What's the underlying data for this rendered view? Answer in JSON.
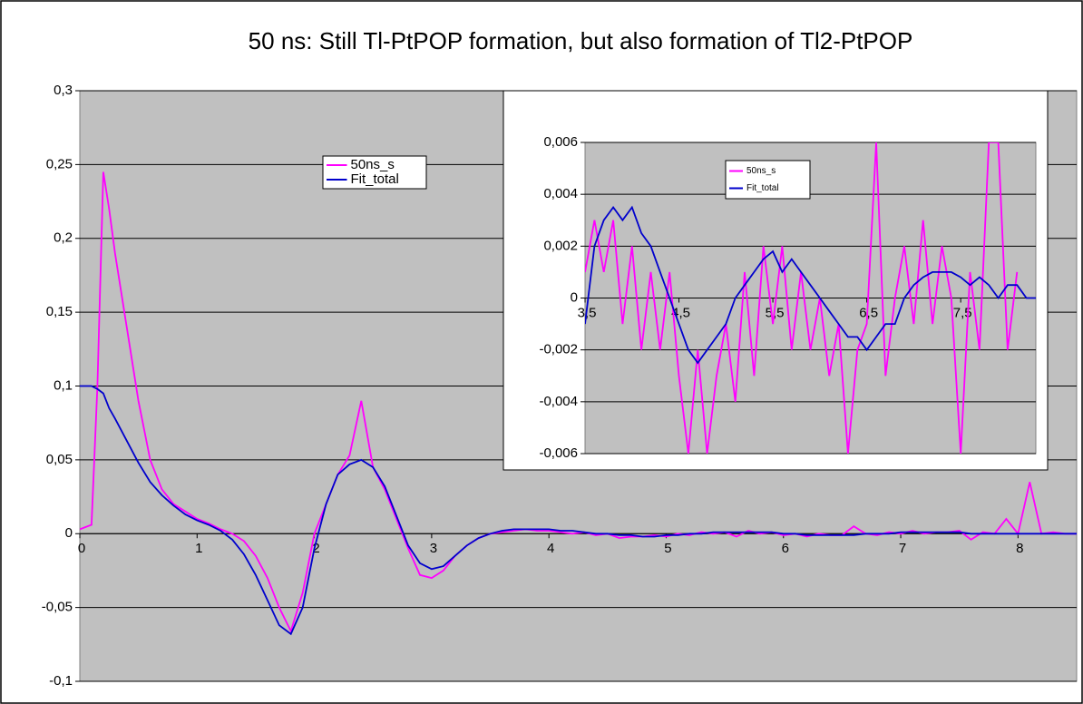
{
  "chart_data": [
    {
      "type": "line",
      "title": "50 ns: Still Tl-PtPOP formation, but also formation of Tl2-PtPOP",
      "x": [
        0,
        0.1,
        0.15,
        0.2,
        0.25,
        0.3,
        0.4,
        0.5,
        0.6,
        0.7,
        0.8,
        0.9,
        1.0,
        1.1,
        1.2,
        1.3,
        1.4,
        1.5,
        1.6,
        1.7,
        1.8,
        1.9,
        2.0,
        2.1,
        2.2,
        2.3,
        2.4,
        2.5,
        2.6,
        2.7,
        2.8,
        2.9,
        3.0,
        3.1,
        3.2,
        3.3,
        3.4,
        3.5,
        3.6,
        3.7,
        3.8,
        3.9,
        4.0,
        4.1,
        4.2,
        4.3,
        4.4,
        4.5,
        4.6,
        4.7,
        4.8,
        4.9,
        5.0,
        5.1,
        5.2,
        5.3,
        5.4,
        5.5,
        5.6,
        5.7,
        5.8,
        5.9,
        6.0,
        6.1,
        6.2,
        6.3,
        6.4,
        6.5,
        6.6,
        6.7,
        6.8,
        6.9,
        7.0,
        7.1,
        7.2,
        7.3,
        7.4,
        7.5,
        7.6,
        7.7,
        7.8,
        7.9,
        8.0,
        8.1,
        8.2,
        8.3,
        8.4,
        8.5
      ],
      "xlim": [
        0,
        8.5
      ],
      "xticks": [
        0,
        1,
        2,
        3,
        4,
        5,
        6,
        7,
        8
      ],
      "ylim": [
        -0.1,
        0.3
      ],
      "yticks": [
        {
          "value": -0.1,
          "label": "-0,1"
        },
        {
          "value": -0.05,
          "label": "-0,05"
        },
        0,
        {
          "value": 0.05,
          "label": "0,05"
        },
        {
          "value": 0.1,
          "label": "0,1"
        },
        {
          "value": 0.15,
          "label": "0,15"
        },
        {
          "value": 0.2,
          "label": "0,2"
        },
        {
          "value": 0.25,
          "label": "0,25"
        },
        {
          "value": 0.3,
          "label": "0,3"
        }
      ],
      "grid": true,
      "background": "#c0c0c0",
      "series": [
        {
          "name": "50ns_s",
          "color": "#ff00ff",
          "values": [
            0.003,
            0.006,
            0.1,
            0.245,
            0.22,
            0.19,
            0.14,
            0.09,
            0.05,
            0.03,
            0.02,
            0.015,
            0.01,
            0.007,
            0.003,
            0.0,
            -0.005,
            -0.015,
            -0.03,
            -0.05,
            -0.066,
            -0.04,
            0.0,
            0.02,
            0.04,
            0.053,
            0.09,
            0.045,
            0.03,
            0.01,
            -0.01,
            -0.028,
            -0.03,
            -0.025,
            -0.015,
            -0.008,
            -0.003,
            0.0,
            0.001,
            0.002,
            0.003,
            0.002,
            0.002,
            0.001,
            0.0,
            0.001,
            -0.001,
            0.0,
            -0.003,
            -0.002,
            -0.002,
            -0.001,
            -0.002,
            0.0,
            -0.001,
            0.001,
            0.0,
            0.001,
            -0.002,
            0.002,
            0.0,
            0.001,
            -0.001,
            0.0,
            -0.002,
            0.0,
            -0.001,
            -0.001,
            0.005,
            0.0,
            -0.001,
            0.001,
            0.0,
            0.002,
            0.0,
            0.001,
            0.001,
            0.002,
            -0.004,
            0.001,
            0.0,
            0.01,
            0.0,
            0.035,
            0.0,
            0.001,
            0.0,
            0.0
          ]
        },
        {
          "name": "Fit_total",
          "color": "#0000cc",
          "values": [
            0.1,
            0.1,
            0.098,
            0.095,
            0.085,
            0.078,
            0.063,
            0.048,
            0.035,
            0.026,
            0.019,
            0.013,
            0.009,
            0.006,
            0.002,
            -0.004,
            -0.014,
            -0.028,
            -0.045,
            -0.062,
            -0.068,
            -0.05,
            -0.01,
            0.02,
            0.04,
            0.047,
            0.05,
            0.045,
            0.032,
            0.012,
            -0.008,
            -0.02,
            -0.024,
            -0.022,
            -0.015,
            -0.008,
            -0.003,
            0.0,
            0.002,
            0.003,
            0.003,
            0.003,
            0.003,
            0.002,
            0.002,
            0.001,
            0.0,
            0.0,
            -0.001,
            -0.001,
            -0.002,
            -0.002,
            -0.001,
            -0.001,
            0.0,
            0.0,
            0.001,
            0.001,
            0.001,
            0.001,
            0.001,
            0.001,
            0.0,
            0.0,
            -0.001,
            -0.001,
            -0.001,
            -0.001,
            -0.001,
            0.0,
            0.0,
            0.0,
            0.001,
            0.001,
            0.001,
            0.001,
            0.001,
            0.001,
            0.0,
            0.0,
            0.0,
            0.0,
            0.0,
            0.0,
            0.0,
            0.0,
            0.0,
            0.0
          ]
        }
      ]
    },
    {
      "type": "line",
      "x": [
        3.5,
        3.6,
        3.7,
        3.8,
        3.9,
        4.0,
        4.1,
        4.2,
        4.3,
        4.4,
        4.5,
        4.6,
        4.7,
        4.8,
        4.9,
        5.0,
        5.1,
        5.2,
        5.3,
        5.4,
        5.5,
        5.6,
        5.7,
        5.8,
        5.9,
        6.0,
        6.1,
        6.2,
        6.3,
        6.4,
        6.5,
        6.6,
        6.7,
        6.8,
        6.9,
        7.0,
        7.1,
        7.2,
        7.3,
        7.4,
        7.5,
        7.6,
        7.7,
        7.8,
        7.9,
        8.0,
        8.1,
        8.2,
        8.3
      ],
      "xlim": [
        3.5,
        8.3
      ],
      "xticks": [
        {
          "value": 3.5,
          "label": "3,5"
        },
        {
          "value": 4.5,
          "label": "4,5"
        },
        {
          "value": 5.5,
          "label": "5,5"
        },
        {
          "value": 6.5,
          "label": "6,5"
        },
        {
          "value": 7.5,
          "label": "7,5"
        }
      ],
      "ylim": [
        -0.006,
        0.006
      ],
      "yticks": [
        {
          "value": -0.006,
          "label": "-0,006"
        },
        {
          "value": -0.004,
          "label": "-0,004"
        },
        {
          "value": -0.002,
          "label": "-0,002"
        },
        0,
        {
          "value": 0.002,
          "label": "0,002"
        },
        {
          "value": 0.004,
          "label": "0,004"
        },
        {
          "value": 0.006,
          "label": "0,006"
        }
      ],
      "grid": true,
      "background": "#c0c0c0",
      "series": [
        {
          "name": "50ns_s",
          "color": "#ff00ff",
          "values": [
            0.001,
            0.003,
            0.001,
            0.003,
            -0.001,
            0.002,
            -0.002,
            0.001,
            -0.002,
            0.001,
            -0.003,
            -0.006,
            -0.002,
            -0.006,
            -0.003,
            -0.001,
            -0.004,
            0.001,
            -0.003,
            0.002,
            -0.001,
            0.002,
            -0.002,
            0.001,
            -0.002,
            0.0,
            -0.003,
            -0.001,
            -0.006,
            -0.002,
            -0.001,
            0.006,
            -0.003,
            0.0,
            0.002,
            -0.001,
            0.003,
            -0.001,
            0.002,
            0.0,
            -0.006,
            0.001,
            -0.002,
            0.006,
            0.006,
            -0.002,
            0.001,
            null,
            null
          ]
        },
        {
          "name": "Fit_total",
          "color": "#0000cc",
          "values": [
            -0.001,
            0.002,
            0.003,
            0.0035,
            0.003,
            0.0035,
            0.0025,
            0.002,
            0.001,
            0.0,
            -0.001,
            -0.002,
            -0.0025,
            -0.002,
            -0.0015,
            -0.001,
            0.0,
            0.0005,
            0.001,
            0.0015,
            0.0018,
            0.001,
            0.0015,
            0.001,
            0.0005,
            0.0,
            -0.0005,
            -0.001,
            -0.0015,
            -0.0015,
            -0.002,
            -0.0015,
            -0.001,
            -0.001,
            0.0,
            0.0005,
            0.0008,
            0.001,
            0.001,
            0.001,
            0.0008,
            0.0005,
            0.0008,
            0.0005,
            0.0,
            0.0005,
            0.0005,
            0.0,
            0.0
          ]
        }
      ]
    }
  ]
}
